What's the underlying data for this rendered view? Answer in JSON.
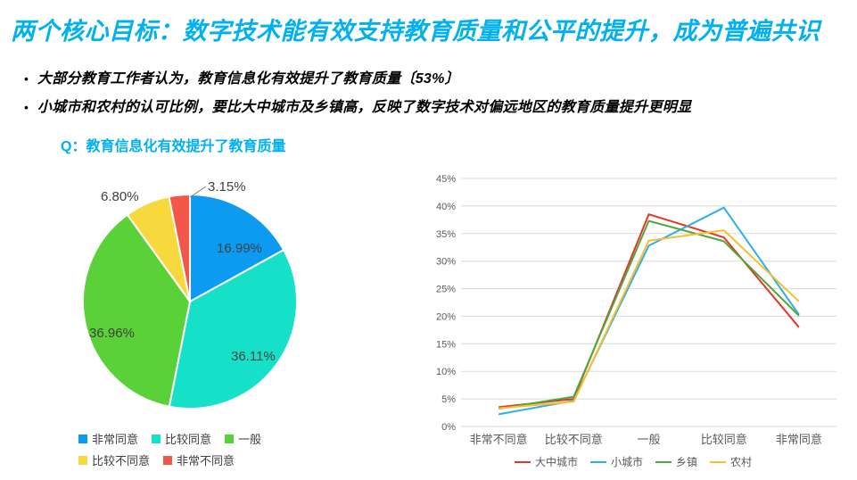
{
  "slide": {
    "title": "两个核心目标：数字技术能有效支持教育质量和公平的提升，成为普遍共识",
    "title_color": "#00b0f0",
    "bullet_marker": "•",
    "bullets": [
      "大部分教育工作者认为，教育信息化有效提升了教育质量〔53%〕",
      "小城市和农村的认可比例，要比大中城市及乡镇高，反映了数字技术对偏远地区的教育质量提升更明显"
    ],
    "question_label": "Q：教育信息化有效提升了教育质量",
    "background_color": "#ffffff"
  },
  "chart_data": [
    {
      "type": "pie",
      "title": "Q：教育信息化有效提升了教育质量",
      "labels": [
        "非常同意",
        "比较同意",
        "一般",
        "比较不同意",
        "非常不同意"
      ],
      "values": [
        16.99,
        36.11,
        36.96,
        6.8,
        3.15
      ],
      "value_labels": [
        "16.99%",
        "36.11%",
        "36.96%",
        "6.80%",
        "3.15%"
      ],
      "colors": [
        "#0d9bf2",
        "#17e0c9",
        "#5bd139",
        "#f7d83d",
        "#f4574a"
      ],
      "start_angle_deg": 0,
      "direction": "clockwise",
      "label_color": "#404040",
      "legend_position": "bottom-left",
      "legend_rows": [
        [
          0,
          1,
          2
        ],
        [
          3,
          4
        ]
      ]
    },
    {
      "type": "line",
      "categories": [
        "非常不同意",
        "比较不同意",
        "一般",
        "比较同意",
        "非常同意"
      ],
      "series": [
        {
          "name": "大中城市",
          "color": "#e63329",
          "values": [
            3.5,
            5.0,
            38.5,
            34.3,
            18.0
          ]
        },
        {
          "name": "小城市",
          "color": "#2bb0e8",
          "values": [
            2.2,
            4.7,
            32.8,
            39.7,
            20.3
          ]
        },
        {
          "name": "乡镇",
          "color": "#4ea83a",
          "values": [
            3.2,
            5.4,
            37.3,
            33.6,
            20.1
          ]
        },
        {
          "name": "农村",
          "color": "#f7bf2e",
          "values": [
            3.3,
            4.5,
            33.7,
            35.6,
            22.7
          ]
        }
      ],
      "ylim": [
        0,
        45
      ],
      "yticks": [
        "0%",
        "5%",
        "10%",
        "15%",
        "20%",
        "25%",
        "30%",
        "35%",
        "40%",
        "45%"
      ],
      "ytick_values": [
        0,
        5,
        10,
        15,
        20,
        25,
        30,
        35,
        40,
        45
      ],
      "grid": true,
      "gridline_color": "#d9d9d9",
      "axis_text_color": "#595959",
      "legend_position": "bottom"
    }
  ]
}
